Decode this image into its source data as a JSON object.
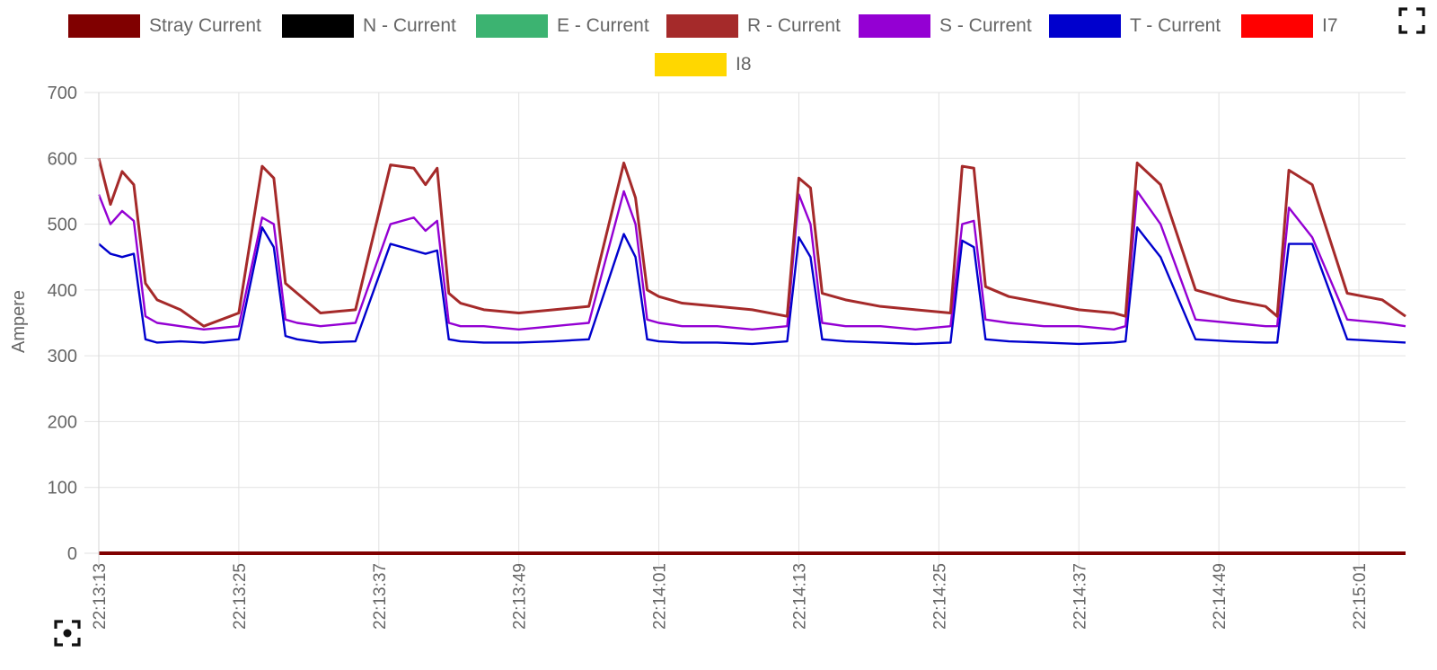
{
  "toolbar": {
    "fullscreen_icon": "fullscreen-icon",
    "screenshot_icon": "screenshot-icon"
  },
  "chart_data": {
    "type": "line",
    "title": "",
    "xlabel": "",
    "ylabel": "Ampere",
    "ylim": [
      0,
      700
    ],
    "yticks": [
      0,
      100,
      200,
      300,
      400,
      500,
      600,
      700
    ],
    "xlim": [
      "22:13:13",
      "22:15:05"
    ],
    "xticks": [
      "22:13:13",
      "22:13:25",
      "22:13:37",
      "22:13:49",
      "22:14:01",
      "22:14:13",
      "22:14:25",
      "22:14:37",
      "22:14:49",
      "22:15:01"
    ],
    "grid": true,
    "legend_position": "top",
    "x": [
      "22:13:13",
      "22:13:14",
      "22:13:15",
      "22:13:16",
      "22:13:17",
      "22:13:18",
      "22:13:20",
      "22:13:22",
      "22:13:25",
      "22:13:27",
      "22:13:28",
      "22:13:29",
      "22:13:30",
      "22:13:32",
      "22:13:35",
      "22:13:38",
      "22:13:40",
      "22:13:41",
      "22:13:42",
      "22:13:43",
      "22:13:44",
      "22:13:46",
      "22:13:49",
      "22:13:52",
      "22:13:55",
      "22:13:58",
      "22:13:59",
      "22:14:00",
      "22:14:01",
      "22:14:03",
      "22:14:06",
      "22:14:09",
      "22:14:12",
      "22:14:13",
      "22:14:14",
      "22:14:15",
      "22:14:17",
      "22:14:20",
      "22:14:23",
      "22:14:26",
      "22:14:27",
      "22:14:28",
      "22:14:29",
      "22:14:31",
      "22:14:34",
      "22:14:37",
      "22:14:40",
      "22:14:41",
      "22:14:42",
      "22:14:44",
      "22:14:47",
      "22:14:50",
      "22:14:53",
      "22:14:54",
      "22:14:55",
      "22:14:57",
      "22:15:00",
      "22:15:03",
      "22:15:05"
    ],
    "series": [
      {
        "name": "Stray Current",
        "color": "#800000",
        "values": [
          0,
          0,
          0,
          0,
          0,
          0,
          0,
          0,
          0,
          0,
          0,
          0,
          0,
          0,
          0,
          0,
          0,
          0,
          0,
          0,
          0,
          0,
          0,
          0,
          0,
          0,
          0,
          0,
          0,
          0,
          0,
          0,
          0,
          0,
          0,
          0,
          0,
          0,
          0,
          0,
          0,
          0,
          0,
          0,
          0,
          0,
          0,
          0,
          0,
          0,
          0,
          0,
          0,
          0,
          0,
          0,
          0,
          0,
          0
        ]
      },
      {
        "name": "N - Current",
        "color": "#000000",
        "values": [
          0,
          0,
          0,
          0,
          0,
          0,
          0,
          0,
          0,
          0,
          0,
          0,
          0,
          0,
          0,
          0,
          0,
          0,
          0,
          0,
          0,
          0,
          0,
          0,
          0,
          0,
          0,
          0,
          0,
          0,
          0,
          0,
          0,
          0,
          0,
          0,
          0,
          0,
          0,
          0,
          0,
          0,
          0,
          0,
          0,
          0,
          0,
          0,
          0,
          0,
          0,
          0,
          0,
          0,
          0,
          0,
          0,
          0,
          0
        ]
      },
      {
        "name": "E - Current",
        "color": "#3cb371",
        "values": [
          0,
          0,
          0,
          0,
          0,
          0,
          0,
          0,
          0,
          0,
          0,
          0,
          0,
          0,
          0,
          0,
          0,
          0,
          0,
          0,
          0,
          0,
          0,
          0,
          0,
          0,
          0,
          0,
          0,
          0,
          0,
          0,
          0,
          0,
          0,
          0,
          0,
          0,
          0,
          0,
          0,
          0,
          0,
          0,
          0,
          0,
          0,
          0,
          0,
          0,
          0,
          0,
          0,
          0,
          0,
          0,
          0,
          0,
          0
        ]
      },
      {
        "name": "R - Current",
        "color": "#a52a2a",
        "values": [
          600,
          530,
          580,
          560,
          410,
          385,
          370,
          345,
          365,
          588,
          570,
          410,
          395,
          365,
          370,
          590,
          585,
          560,
          585,
          395,
          380,
          370,
          365,
          370,
          375,
          593,
          540,
          400,
          390,
          380,
          375,
          370,
          360,
          570,
          555,
          395,
          385,
          375,
          370,
          365,
          588,
          585,
          405,
          390,
          380,
          370,
          365,
          360,
          593,
          560,
          400,
          385,
          375,
          360,
          582,
          560,
          395,
          385,
          360
        ]
      },
      {
        "name": "S - Current",
        "color": "#9400d3",
        "values": [
          545,
          500,
          520,
          505,
          360,
          350,
          345,
          340,
          345,
          510,
          500,
          355,
          350,
          345,
          350,
          500,
          510,
          490,
          505,
          350,
          345,
          345,
          340,
          345,
          350,
          550,
          500,
          355,
          350,
          345,
          345,
          340,
          345,
          545,
          500,
          350,
          345,
          345,
          340,
          345,
          500,
          505,
          355,
          350,
          345,
          345,
          340,
          345,
          550,
          500,
          355,
          350,
          345,
          345,
          525,
          480,
          355,
          350,
          345
        ]
      },
      {
        "name": "T - Current",
        "color": "#0000cd",
        "values": [
          470,
          455,
          450,
          455,
          325,
          320,
          322,
          320,
          325,
          495,
          465,
          330,
          325,
          320,
          322,
          470,
          460,
          455,
          460,
          325,
          322,
          320,
          320,
          322,
          325,
          485,
          450,
          325,
          322,
          320,
          320,
          318,
          322,
          480,
          450,
          325,
          322,
          320,
          318,
          320,
          475,
          465,
          325,
          322,
          320,
          318,
          320,
          322,
          495,
          450,
          325,
          322,
          320,
          320,
          470,
          470,
          325,
          322,
          320
        ]
      },
      {
        "name": "I7",
        "color": "#ff0000",
        "values": [
          0,
          0,
          0,
          0,
          0,
          0,
          0,
          0,
          0,
          0,
          0,
          0,
          0,
          0,
          0,
          0,
          0,
          0,
          0,
          0,
          0,
          0,
          0,
          0,
          0,
          0,
          0,
          0,
          0,
          0,
          0,
          0,
          0,
          0,
          0,
          0,
          0,
          0,
          0,
          0,
          0,
          0,
          0,
          0,
          0,
          0,
          0,
          0,
          0,
          0,
          0,
          0,
          0,
          0,
          0,
          0,
          0,
          0,
          0
        ]
      },
      {
        "name": "I8",
        "color": "#ffd700",
        "values": [
          0,
          0,
          0,
          0,
          0,
          0,
          0,
          0,
          0,
          0,
          0,
          0,
          0,
          0,
          0,
          0,
          0,
          0,
          0,
          0,
          0,
          0,
          0,
          0,
          0,
          0,
          0,
          0,
          0,
          0,
          0,
          0,
          0,
          0,
          0,
          0,
          0,
          0,
          0,
          0,
          0,
          0,
          0,
          0,
          0,
          0,
          0,
          0,
          0,
          0,
          0,
          0,
          0,
          0,
          0,
          0,
          0,
          0,
          0
        ]
      }
    ]
  }
}
